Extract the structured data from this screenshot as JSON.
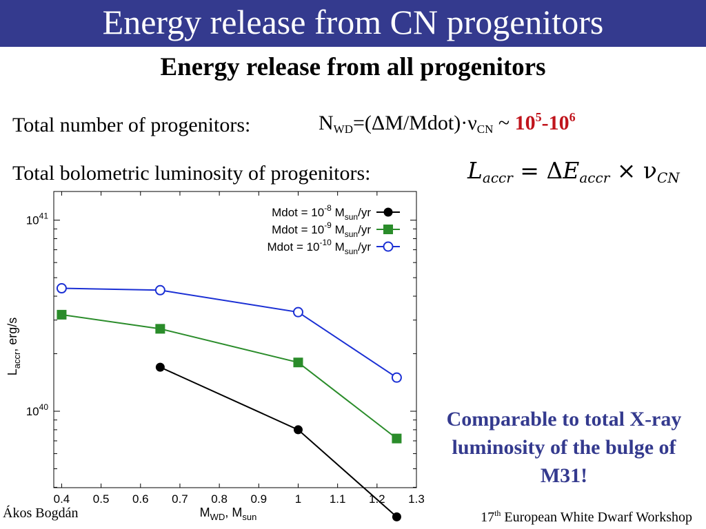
{
  "slide": {
    "title": "Energy release from CN progenitors",
    "subtitle": "Energy release from all progenitors",
    "line1": {
      "label": "Total number of progenitors:",
      "formula_n": "N",
      "formula_wd": "WD",
      "formula_mid": "=(ΔM/Mdot)·ν",
      "formula_cn": "CN",
      "formula_tilde": " ~ ",
      "range_a": "10",
      "range_a_exp": "5",
      "range_dash": "-10",
      "range_b_exp": "6"
    },
    "line2": {
      "label": "Total bolometric luminosity of progenitors:",
      "eq_l": "L",
      "eq_sub1": "accr",
      "eq_mid": " = Δ",
      "eq_e": "E",
      "eq_sub2": "accr",
      "eq_times": " × ν",
      "eq_sub3": "CN"
    },
    "note": "Comparable to total X-ray luminosity of the bulge of M31!",
    "footer_left": "Ákos Bogdán",
    "footer_right_num": "17",
    "footer_right_sup": "th",
    "footer_right_text": " European White Dwarf Workshop",
    "colors": {
      "title_bg": "#343a8e",
      "note": "#343a8e",
      "range": "#c0141c"
    }
  },
  "chart_data": {
    "type": "line",
    "xlabel_main": "M",
    "xlabel_sub1": "WD",
    "xlabel_sep": ", M",
    "xlabel_sub2": "sun",
    "ylabel_main": "L",
    "ylabel_sub": "accr",
    "ylabel_unit": ", erg/s",
    "xlim": [
      0.38,
      1.3
    ],
    "ylim_log10": [
      39.6,
      41.15
    ],
    "y_scale": "log",
    "x_ticks": [
      "0.4",
      "0.5",
      "0.6",
      "0.7",
      "0.8",
      "0.9",
      "1",
      "1.1",
      "1.2",
      "1.3"
    ],
    "x_tick_values": [
      0.4,
      0.5,
      0.6,
      0.7,
      0.8,
      0.9,
      1.0,
      1.1,
      1.2,
      1.3
    ],
    "y_ticks": [
      {
        "base": "10",
        "exp": "41",
        "value": 1e+41
      },
      {
        "base": "10",
        "exp": "40",
        "value": 1e+40
      }
    ],
    "legend_position": "top-right",
    "series": [
      {
        "legend_prefix": "Mdot = 10",
        "legend_exp": "-8",
        "legend_unit": " M",
        "legend_unit_sub": "sun",
        "legend_tail": "/yr",
        "color": "#000000",
        "marker": "filled-circle",
        "x": [
          0.65,
          1.0,
          1.25
        ],
        "y": [
          1.7e+40,
          8e+39,
          2.8e+39
        ]
      },
      {
        "legend_prefix": "Mdot = 10",
        "legend_exp": "-9",
        "legend_unit": " M",
        "legend_unit_sub": "sun",
        "legend_tail": "/yr",
        "color": "#2a8c2a",
        "marker": "filled-square",
        "x": [
          0.4,
          0.65,
          1.0,
          1.25
        ],
        "y": [
          3.2e+40,
          2.7e+40,
          1.8e+40,
          7.2e+39
        ]
      },
      {
        "legend_prefix": "Mdot = 10",
        "legend_exp": "-10",
        "legend_unit": " M",
        "legend_unit_sub": "sun",
        "legend_tail": "/yr",
        "color": "#1a2fd4",
        "marker": "open-circle",
        "x": [
          0.4,
          0.65,
          1.0,
          1.25
        ],
        "y": [
          4.4e+40,
          4.3e+40,
          3.3e+40,
          1.5e+40
        ]
      }
    ]
  }
}
